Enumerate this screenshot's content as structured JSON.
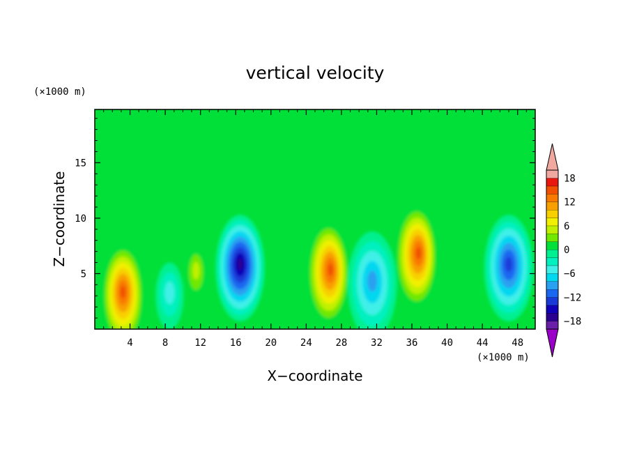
{
  "chart_data": {
    "type": "heatmap",
    "title": "vertical velocity",
    "xlabel": "X−coordinate",
    "ylabel": "Z−coordinate",
    "x_unit": "(×1000 m)",
    "z_unit": "(×1000 m)",
    "xlim": [
      0,
      50
    ],
    "zlim": [
      0,
      19.8
    ],
    "x_ticks": [
      4,
      8,
      12,
      16,
      20,
      24,
      28,
      32,
      36,
      40,
      44,
      48
    ],
    "x_tick_labels": [
      "4",
      "8",
      "12",
      "16",
      "20",
      "24",
      "28",
      "32",
      "36",
      "40",
      "44",
      "48"
    ],
    "z_ticks": [
      5,
      10,
      15
    ],
    "z_tick_labels": [
      "5",
      "10",
      "15"
    ],
    "colorbar": {
      "levels": [
        -20,
        -18,
        -16,
        -14,
        -12,
        -10,
        -8,
        -6,
        -4,
        -2,
        0,
        2,
        4,
        6,
        8,
        10,
        12,
        14,
        16,
        18,
        20
      ],
      "labeled_values": [
        18,
        12,
        6,
        0,
        -6,
        -12,
        -18
      ],
      "labeled_text": [
        "18",
        "12",
        "6",
        "0",
        "−6",
        "−12",
        "−18"
      ],
      "colors": [
        "#9a00c8",
        "#6a1fa8",
        "#2a0090",
        "#1000b8",
        "#1a3ad8",
        "#1a68f0",
        "#2aa0f0",
        "#00d8f0",
        "#40f0e8",
        "#00f0c0",
        "#00f090",
        "#00e038",
        "#70e800",
        "#c0f000",
        "#f0f000",
        "#f8d000",
        "#f8a000",
        "#f87a00",
        "#f05000",
        "#e81810",
        "#f0a8a0"
      ],
      "extend": "both"
    },
    "features": [
      {
        "kind": "updraft",
        "x": 3.2,
        "z": 3.0,
        "peak": 15
      },
      {
        "kind": "weak-downdraft",
        "x": 8.5,
        "z": 3.0,
        "peak": -6
      },
      {
        "kind": "weak-updraft",
        "x": 11.5,
        "z": 5.0,
        "peak": 5
      },
      {
        "kind": "downdraft",
        "x": 16.5,
        "z": 5.5,
        "peak": -17
      },
      {
        "kind": "updraft",
        "x": 26.5,
        "z": 5.0,
        "peak": 15
      },
      {
        "kind": "downdraft",
        "x": 31.5,
        "z": 4.0,
        "peak": -9
      },
      {
        "kind": "updraft",
        "x": 36.5,
        "z": 6.5,
        "peak": 15
      },
      {
        "kind": "downdraft",
        "x": 47.0,
        "z": 5.5,
        "peak": -13
      }
    ]
  }
}
